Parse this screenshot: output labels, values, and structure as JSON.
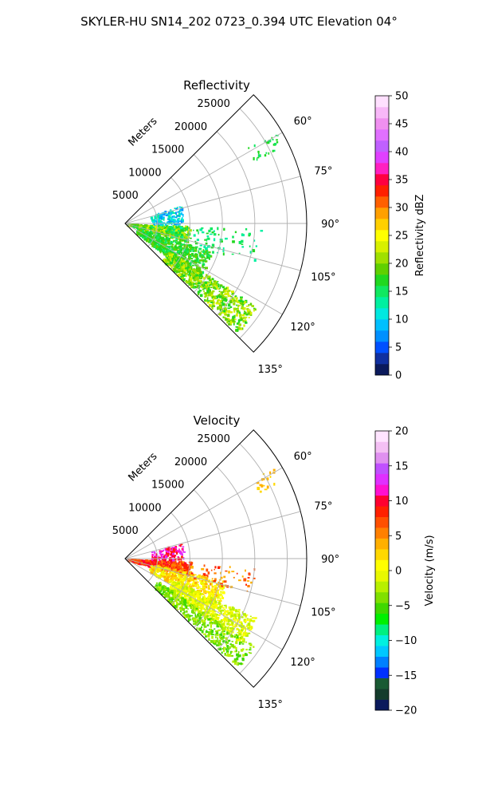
{
  "figure": {
    "suptitle": "SKYLER-HU  SN14_202  0723_0.394 UTC Elevation 04°"
  },
  "chart_data": [
    {
      "type": "polar-sector-radar",
      "title": "Reflectivity",
      "radial_axis_label": "Meters",
      "radial_ticks": [
        5000,
        10000,
        15000,
        20000,
        25000
      ],
      "radial_tick_labels": [
        "5000",
        "10000",
        "15000",
        "20000",
        "25000"
      ],
      "rmax": 28000,
      "theta_range_deg": [
        45,
        135
      ],
      "theta_ticks": [
        60,
        75,
        90,
        105,
        120,
        135
      ],
      "theta_tick_labels": [
        "60°",
        "75°",
        "90°",
        "105°",
        "120°",
        "135°"
      ],
      "grid": true,
      "colorbar": {
        "label": "Reflectivity dBZ",
        "range": [
          0,
          50
        ],
        "ticks": [
          0,
          5,
          10,
          15,
          20,
          25,
          30,
          35,
          40,
          45,
          50
        ],
        "tick_labels": [
          "0",
          "5",
          "10",
          "15",
          "20",
          "25",
          "30",
          "35",
          "40",
          "45",
          "50"
        ],
        "colors": [
          "#0b1a5c",
          "#1030a0",
          "#0050ff",
          "#0090ff",
          "#00c0ff",
          "#00e8e0",
          "#00f0a0",
          "#10e860",
          "#20d820",
          "#60d000",
          "#a0e000",
          "#d8f000",
          "#ffff00",
          "#ffd000",
          "#ffa000",
          "#ff6000",
          "#ff2000",
          "#ff0040",
          "#ff20c0",
          "#e040ff",
          "#c060ff",
          "#e070ff",
          "#f090f0",
          "#f8b8f8",
          "#ffe0ff"
        ]
      }
    },
    {
      "type": "polar-sector-radar",
      "title": "Velocity",
      "radial_axis_label": "Meters",
      "radial_ticks": [
        5000,
        10000,
        15000,
        20000,
        25000
      ],
      "radial_tick_labels": [
        "5000",
        "10000",
        "15000",
        "20000",
        "25000"
      ],
      "rmax": 28000,
      "theta_range_deg": [
        45,
        135
      ],
      "theta_ticks": [
        60,
        75,
        90,
        105,
        120,
        135
      ],
      "theta_tick_labels": [
        "60°",
        "75°",
        "90°",
        "105°",
        "120°",
        "135°"
      ],
      "grid": true,
      "colorbar": {
        "label": "Velocity (m/s)",
        "range": [
          -20,
          20
        ],
        "ticks": [
          -20,
          -15,
          -10,
          -5,
          0,
          5,
          10,
          15,
          20
        ],
        "tick_labels": [
          "−20",
          "−15",
          "−10",
          "−5",
          "0",
          "5",
          "10",
          "15",
          "20"
        ],
        "colors": [
          "#0b1a5c",
          "#143c2c",
          "#1a5a34",
          "#0030ff",
          "#0080ff",
          "#00c8ff",
          "#00f0e0",
          "#00f080",
          "#00f000",
          "#40d800",
          "#80e000",
          "#b8f000",
          "#e8f800",
          "#ffff00",
          "#ffd800",
          "#ffb000",
          "#ff8000",
          "#ff5000",
          "#ff2000",
          "#ff0030",
          "#ff10d0",
          "#e030ff",
          "#c050ff",
          "#e090f0",
          "#f4c0f4",
          "#ffe4ff"
        ]
      }
    }
  ]
}
